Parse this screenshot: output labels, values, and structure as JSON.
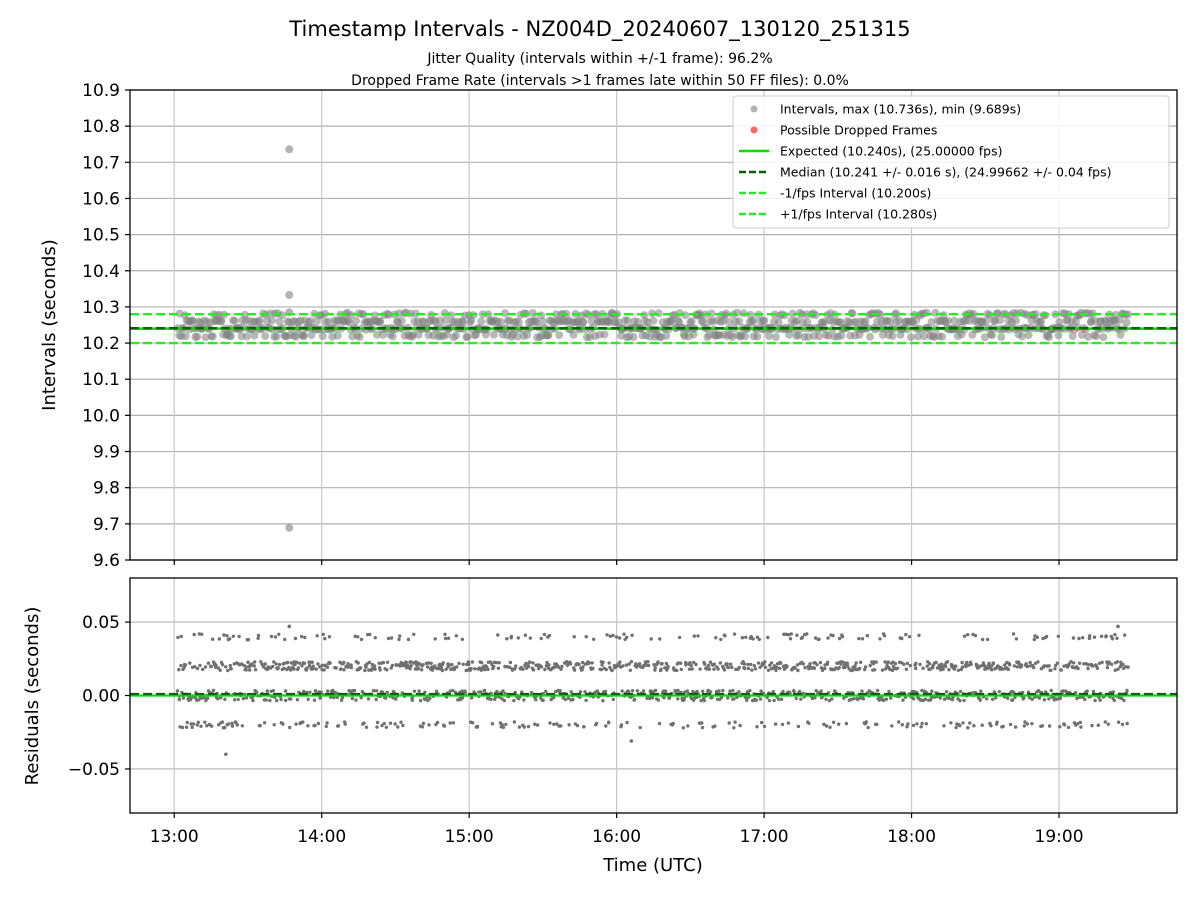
{
  "figure": {
    "title": "Timestamp Intervals - NZ004D_20240607_130120_251315",
    "subtitle1": "Jitter Quality (intervals within +/-1 frame): 96.2%",
    "subtitle2": "Dropped Frame Rate (intervals >1 frames late within 50 FF files): 0.0%"
  },
  "chart_data": [
    {
      "type": "scatter",
      "panel": "intervals",
      "ylabel": "Intervals (seconds)",
      "ylim": [
        9.6,
        10.9
      ],
      "yticks": [
        9.6,
        9.7,
        9.8,
        9.9,
        10.0,
        10.1,
        10.2,
        10.3,
        10.4,
        10.5,
        10.6,
        10.7,
        10.8,
        10.9
      ],
      "ytick_labels": [
        "9.6",
        "9.7",
        "9.8",
        "9.9",
        "10.0",
        "10.1",
        "10.2",
        "10.3",
        "10.4",
        "10.5",
        "10.6",
        "10.7",
        "10.8",
        "10.9"
      ],
      "xlim": [
        12.7,
        19.8
      ],
      "grid": true,
      "legend_position": "top-right",
      "series": [
        {
          "name": "Intervals, max (10.736s), min (9.689s)",
          "kind": "scatter",
          "color": "#808080",
          "time_range": [
            13.02,
            19.47
          ],
          "value_levels": [
            10.22,
            10.24,
            10.26,
            10.28
          ],
          "outliers": [
            {
              "x": 13.78,
              "y": 10.736
            },
            {
              "x": 13.78,
              "y": 10.333
            },
            {
              "x": 13.78,
              "y": 10.285
            },
            {
              "x": 13.78,
              "y": 9.689
            }
          ]
        },
        {
          "name": "Possible Dropped Frames",
          "kind": "scatter",
          "color": "#ff4444",
          "points": []
        },
        {
          "name": "Expected (10.240s), (25.00000 fps)",
          "kind": "hline",
          "y": 10.24,
          "color": "#00e000",
          "dash": "solid"
        },
        {
          "name": "Median (10.241 +/- 0.016 s), (24.99662 +/- 0.04 fps)",
          "kind": "hline",
          "y": 10.241,
          "color": "#006400",
          "dash": "dashed"
        },
        {
          "name": "-1/fps Interval (10.200s)",
          "kind": "hline",
          "y": 10.2,
          "color": "#22ee22",
          "dash": "dashed"
        },
        {
          "name": "+1/fps Interval (10.280s)",
          "kind": "hline",
          "y": 10.28,
          "color": "#22ee22",
          "dash": "dashed"
        }
      ]
    },
    {
      "type": "scatter",
      "panel": "residuals",
      "ylabel": "Residuals (seconds)",
      "xlabel": "Time (UTC)",
      "ylim": [
        -0.08,
        0.08
      ],
      "yticks": [
        -0.05,
        0.0,
        0.05
      ],
      "ytick_labels": [
        "−0.05",
        "0.00",
        "0.05"
      ],
      "xlim": [
        12.7,
        19.8
      ],
      "xticks": [
        13,
        14,
        15,
        16,
        17,
        18,
        19
      ],
      "xtick_labels": [
        "13:00",
        "14:00",
        "15:00",
        "16:00",
        "17:00",
        "18:00",
        "19:00"
      ],
      "grid": true,
      "series": [
        {
          "kind": "scatter",
          "color": "#707070",
          "time_range": [
            13.02,
            19.47
          ],
          "residual_levels": [
            -0.02,
            0.0,
            0.02,
            0.04
          ],
          "outliers": [
            {
              "x": 13.35,
              "y": -0.04
            },
            {
              "x": 13.78,
              "y": 0.047
            },
            {
              "x": 16.1,
              "y": -0.031
            },
            {
              "x": 19.4,
              "y": 0.047
            }
          ]
        },
        {
          "kind": "hline",
          "y": 0.0,
          "color": "#00e000",
          "dash": "solid"
        },
        {
          "kind": "hline",
          "y": 0.001,
          "color": "#006400",
          "dash": "dashed"
        }
      ]
    }
  ]
}
